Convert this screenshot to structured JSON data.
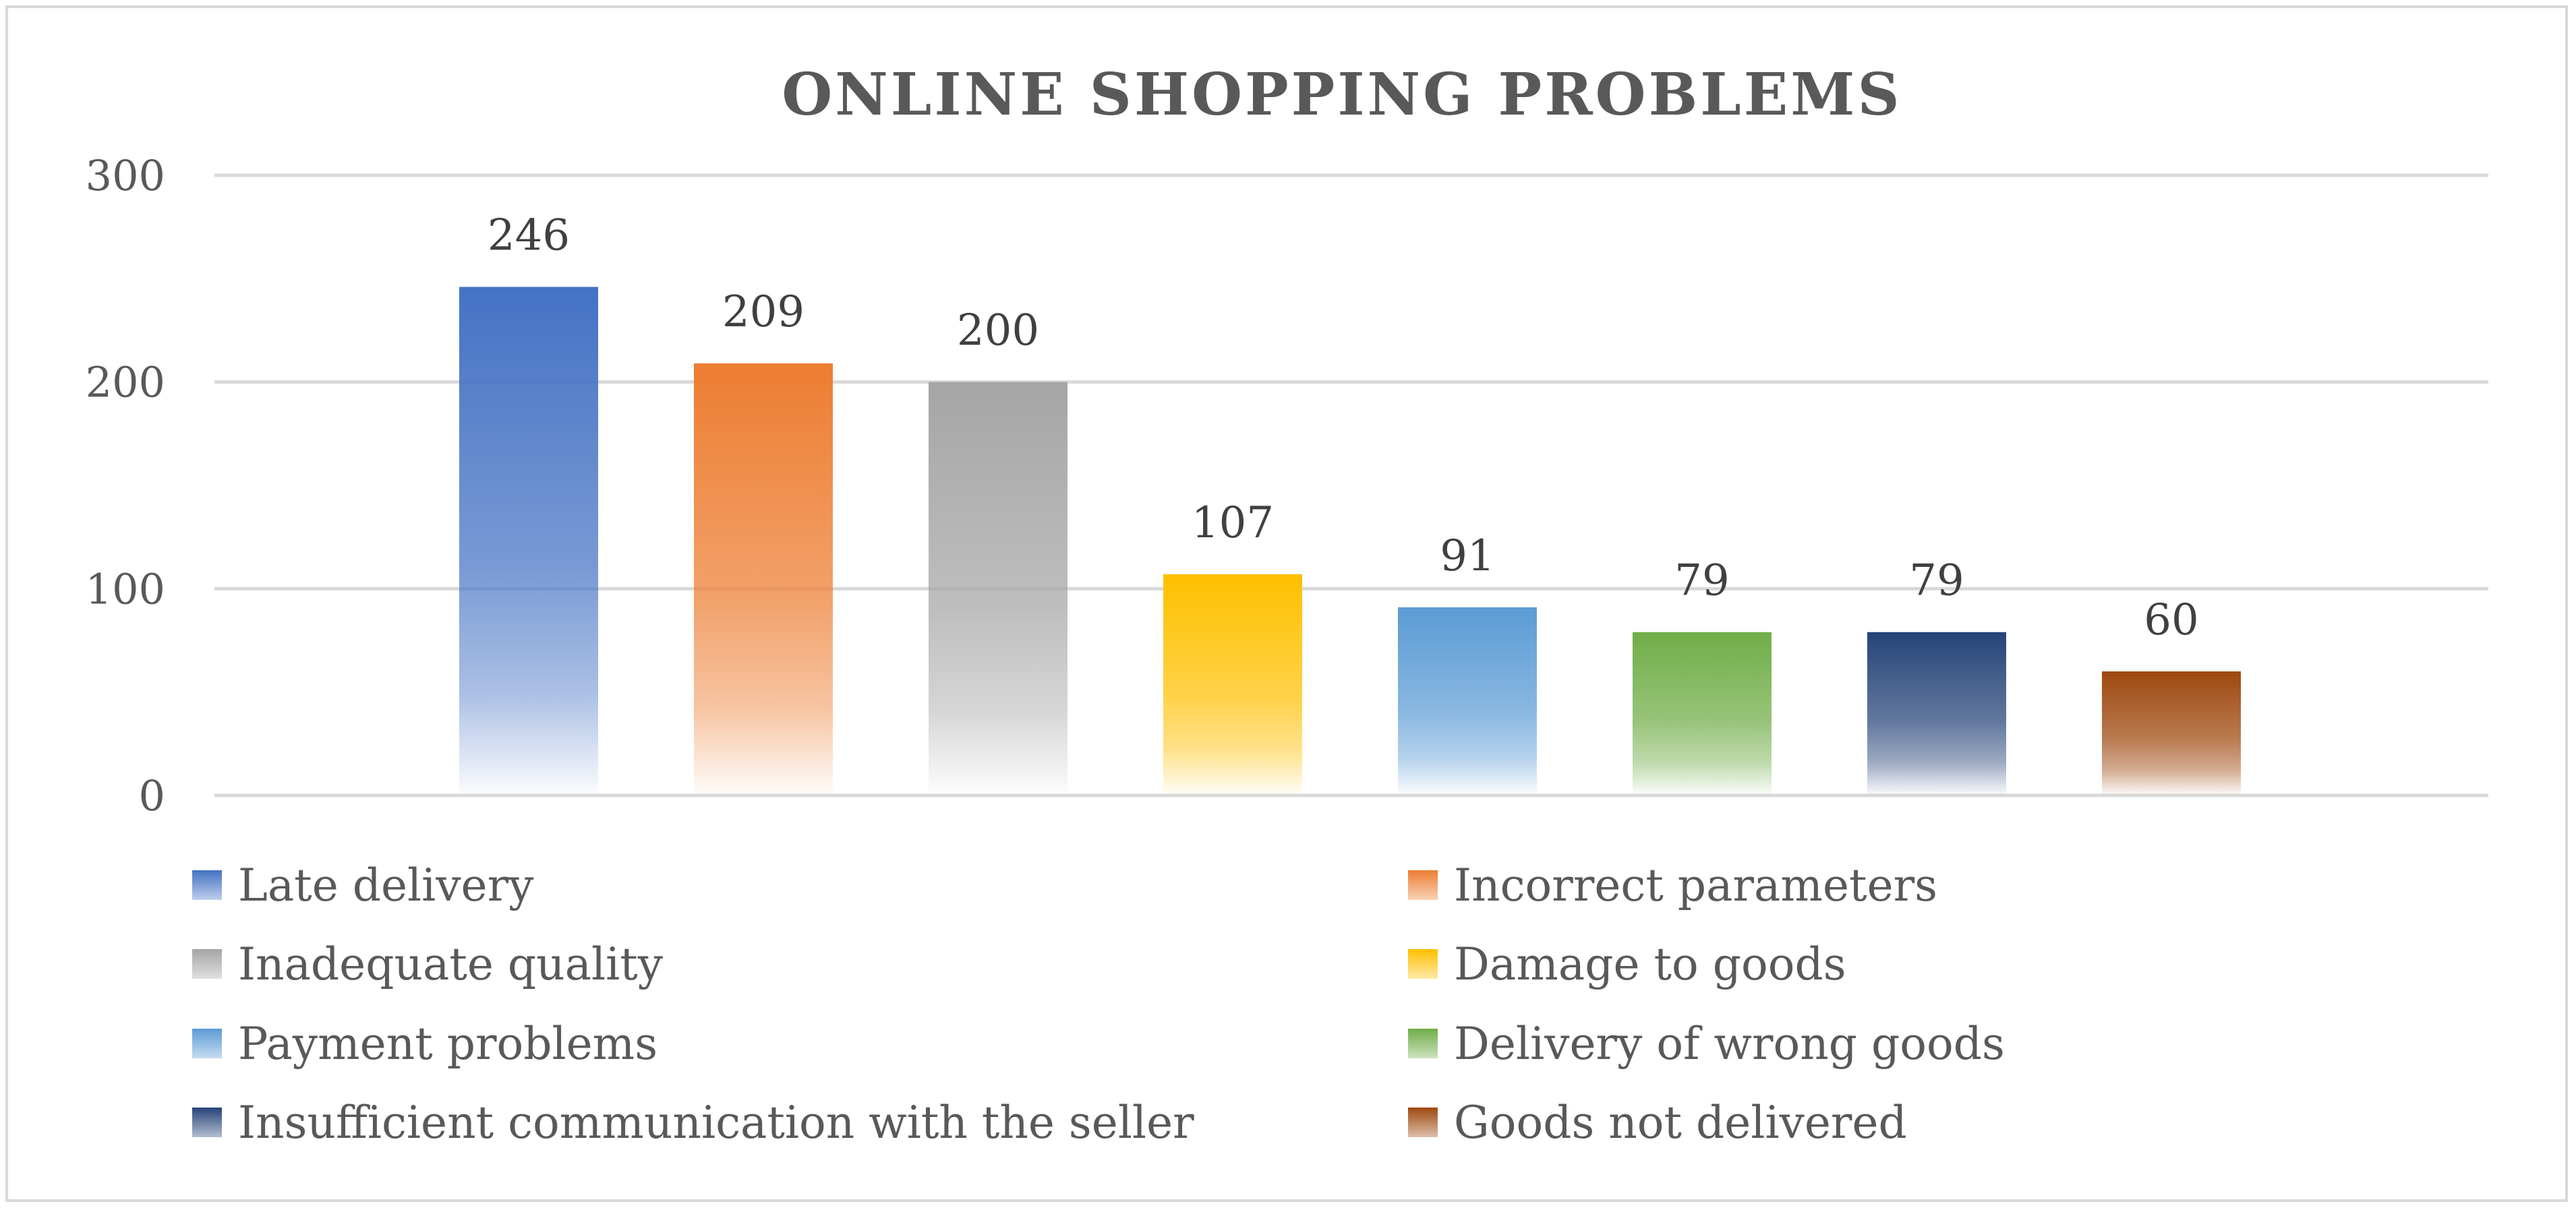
{
  "chart_data": {
    "type": "bar",
    "title": "ONLINE SHOPPING PROBLEMS",
    "xlabel": "",
    "ylabel": "",
    "ylim": [
      0,
      300
    ],
    "yticks": [
      0,
      100,
      200,
      300
    ],
    "grid": true,
    "legend_position": "bottom",
    "categories": [
      "Late delivery",
      "Incorrect parameters",
      "Inadequate quality",
      "Damage to goods",
      "Payment problems",
      "Delivery of wrong goods",
      "Insufficient communication with the seller",
      "Goods not delivered"
    ],
    "values": [
      246,
      209,
      200,
      107,
      91,
      79,
      79,
      60
    ],
    "colors": [
      "#4472c4",
      "#ed7d31",
      "#a5a5a5",
      "#ffc000",
      "#5b9bd5",
      "#70ad47",
      "#264478",
      "#9e480e"
    ]
  }
}
